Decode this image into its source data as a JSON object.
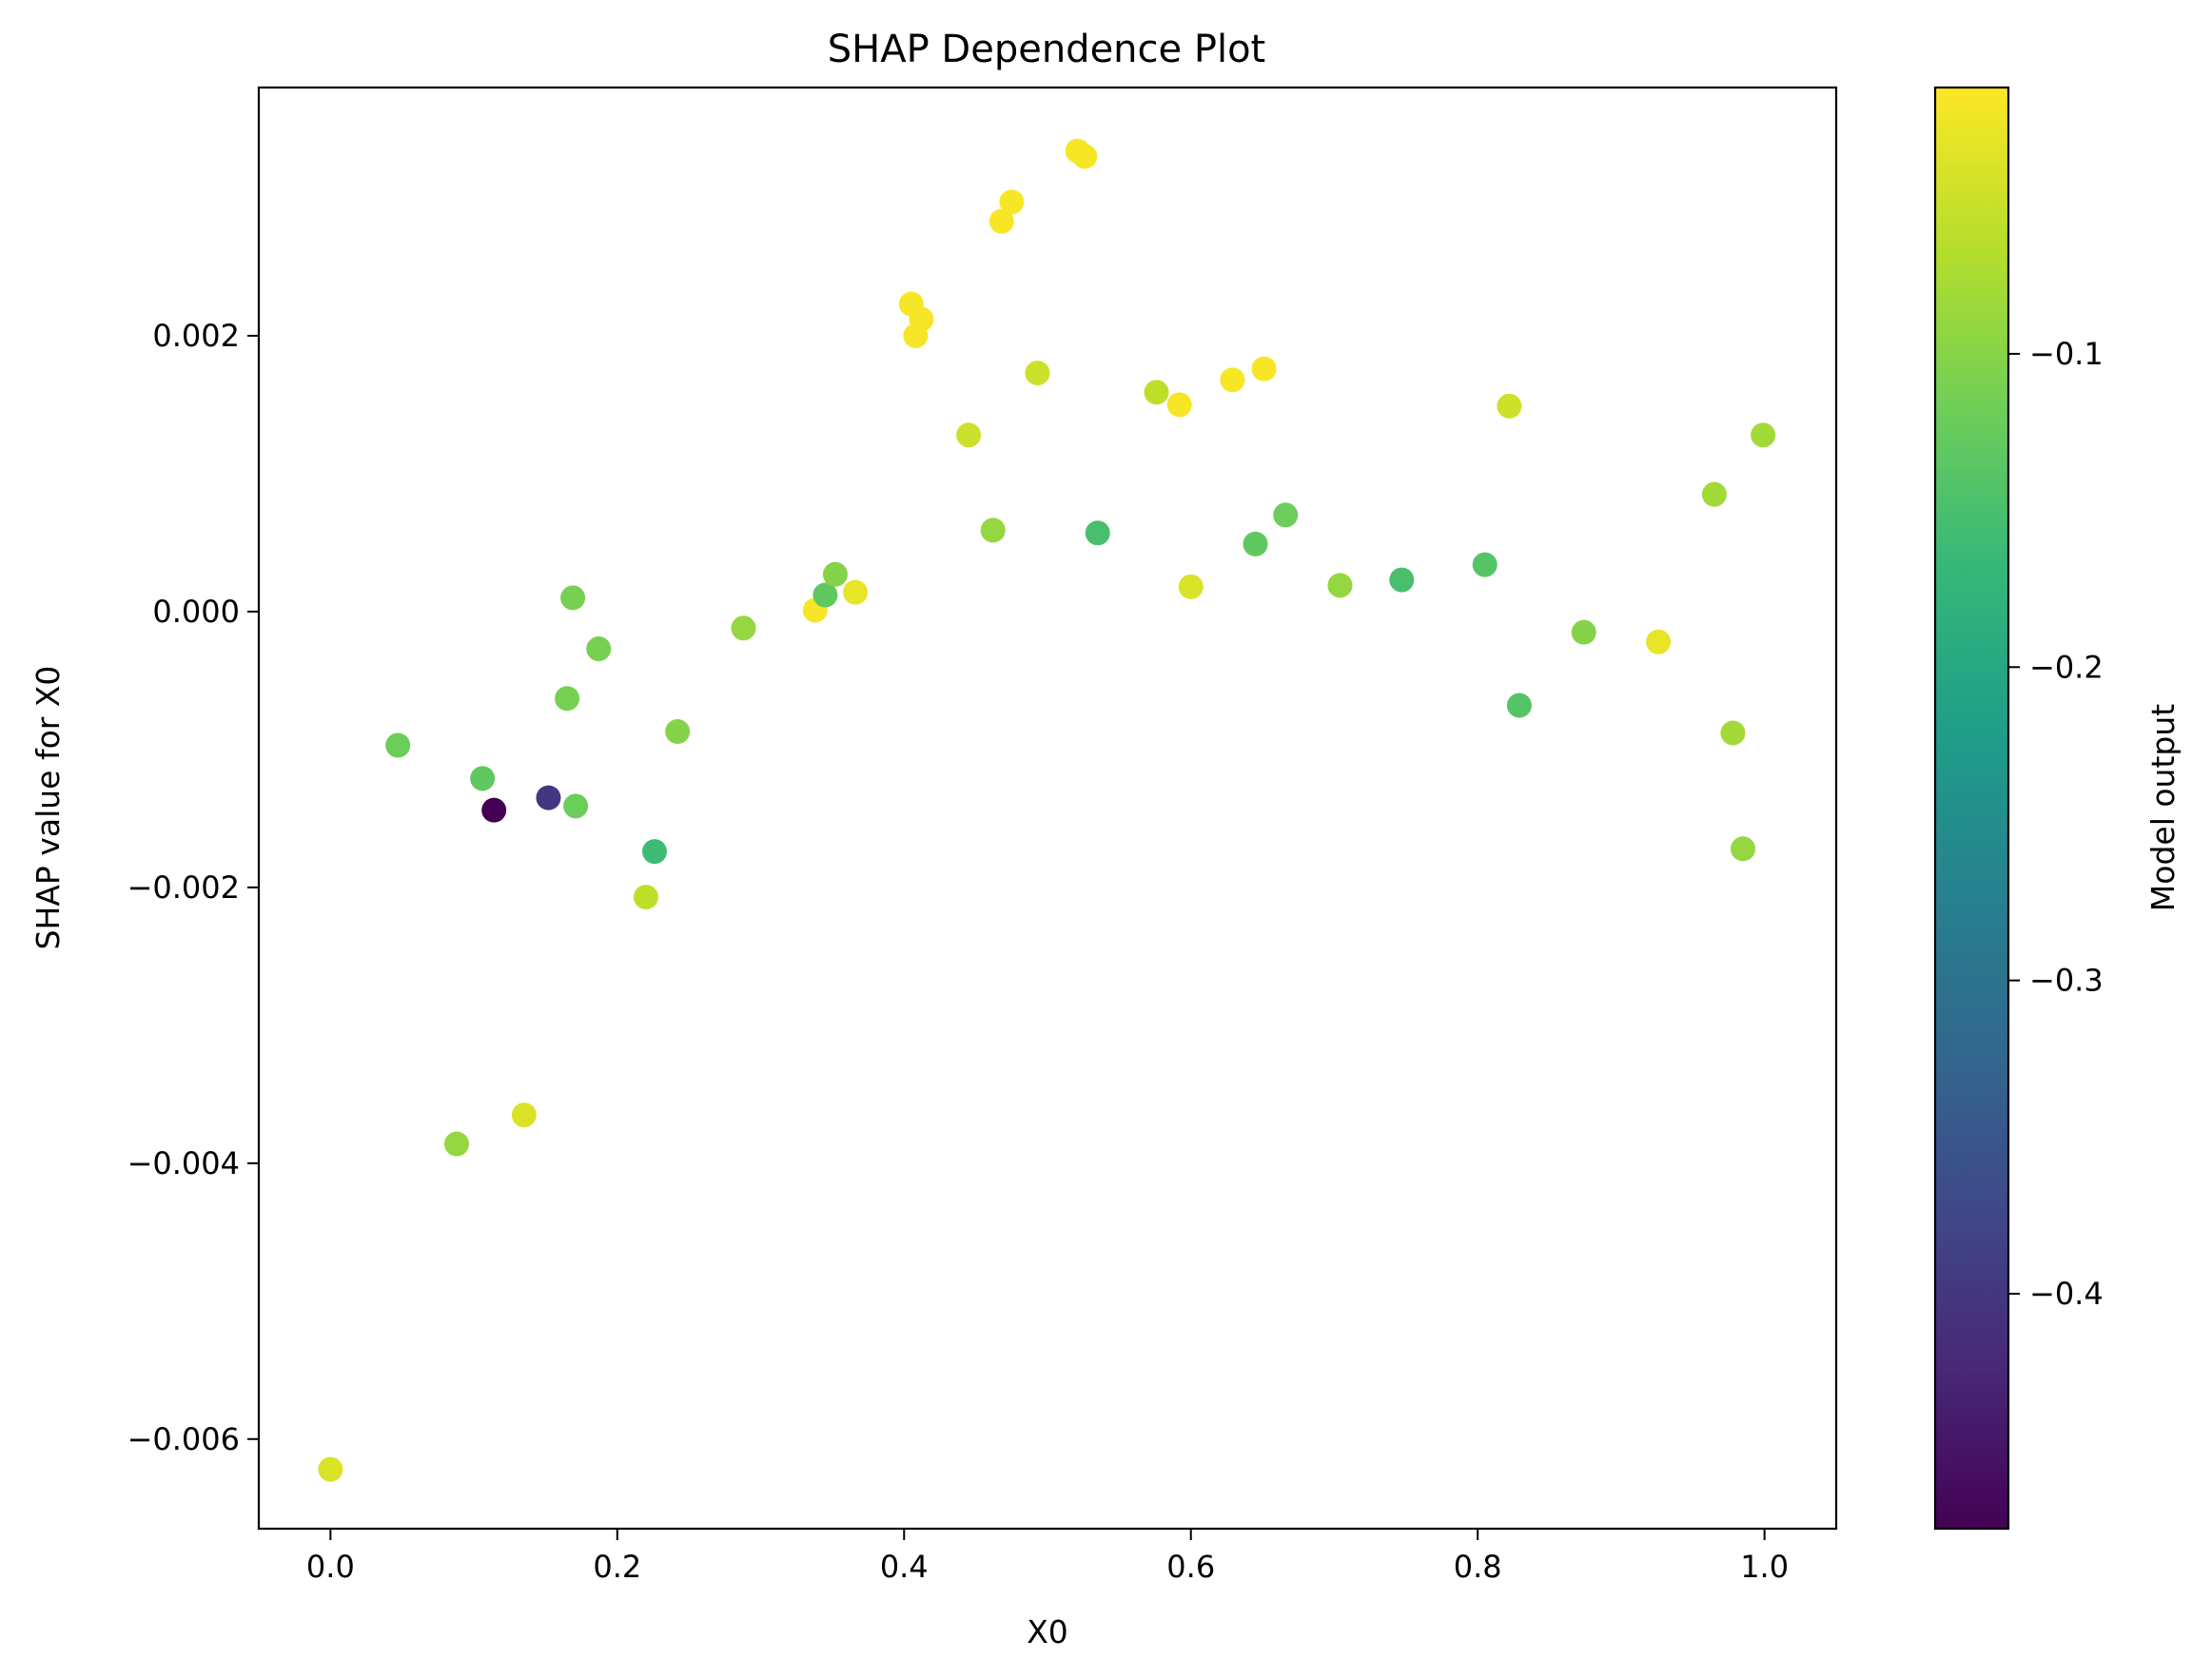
{
  "chart_data": {
    "type": "scatter",
    "title": "SHAP Dependence Plot",
    "xlabel": "X0",
    "ylabel": "SHAP value for X0",
    "xlim": [
      -0.05,
      1.05
    ],
    "ylim": [
      -0.00665,
      0.0038
    ],
    "xticks": [
      0.0,
      0.2,
      0.4,
      0.6,
      0.8,
      1.0
    ],
    "xtick_labels": [
      "0.0",
      "0.2",
      "0.4",
      "0.6",
      "0.8",
      "1.0"
    ],
    "yticks": [
      -0.006,
      -0.004,
      -0.002,
      0.0,
      0.002
    ],
    "ytick_labels": [
      "−0.006",
      "−0.004",
      "−0.002",
      "0.000",
      "0.002"
    ],
    "grid": false,
    "colorbar": {
      "label": "Model output",
      "colormap": "viridis",
      "range": [
        -0.475,
        -0.015
      ],
      "ticks": [
        -0.1,
        -0.2,
        -0.3,
        -0.4
      ],
      "tick_labels": [
        "−0.1",
        "−0.2",
        "−0.3",
        "−0.4"
      ]
    },
    "points": [
      {
        "x": 0.0,
        "y": -0.00622,
        "c": -0.04
      },
      {
        "x": 0.047,
        "y": -0.00097,
        "c": -0.12
      },
      {
        "x": 0.088,
        "y": -0.00386,
        "c": -0.09
      },
      {
        "x": 0.106,
        "y": -0.00121,
        "c": -0.13
      },
      {
        "x": 0.114,
        "y": -0.00144,
        "c": -0.475
      },
      {
        "x": 0.135,
        "y": -0.00365,
        "c": -0.04
      },
      {
        "x": 0.152,
        "y": -0.00135,
        "c": -0.4
      },
      {
        "x": 0.165,
        "y": -0.00063,
        "c": -0.11
      },
      {
        "x": 0.169,
        "y": 0.0001,
        "c": -0.11
      },
      {
        "x": 0.171,
        "y": -0.00141,
        "c": -0.12
      },
      {
        "x": 0.187,
        "y": -0.00027,
        "c": -0.11
      },
      {
        "x": 0.22,
        "y": -0.00207,
        "c": -0.06
      },
      {
        "x": 0.226,
        "y": -0.00174,
        "c": -0.16
      },
      {
        "x": 0.242,
        "y": -0.00087,
        "c": -0.1
      },
      {
        "x": 0.288,
        "y": -0.00012,
        "c": -0.09
      },
      {
        "x": 0.338,
        "y": 1e-05,
        "c": -0.02
      },
      {
        "x": 0.345,
        "y": 0.00012,
        "c": -0.13
      },
      {
        "x": 0.352,
        "y": 0.00027,
        "c": -0.1
      },
      {
        "x": 0.366,
        "y": 0.00014,
        "c": -0.03
      },
      {
        "x": 0.405,
        "y": 0.00223,
        "c": -0.02
      },
      {
        "x": 0.408,
        "y": 0.002,
        "c": -0.02
      },
      {
        "x": 0.412,
        "y": 0.00212,
        "c": -0.02
      },
      {
        "x": 0.445,
        "y": 0.00128,
        "c": -0.05
      },
      {
        "x": 0.462,
        "y": 0.00059,
        "c": -0.09
      },
      {
        "x": 0.468,
        "y": 0.00283,
        "c": -0.02
      },
      {
        "x": 0.475,
        "y": 0.00297,
        "c": -0.02
      },
      {
        "x": 0.493,
        "y": 0.00173,
        "c": -0.05
      },
      {
        "x": 0.521,
        "y": 0.00334,
        "c": -0.02
      },
      {
        "x": 0.526,
        "y": 0.0033,
        "c": -0.02
      },
      {
        "x": 0.535,
        "y": 0.00057,
        "c": -0.15
      },
      {
        "x": 0.576,
        "y": 0.00159,
        "c": -0.06
      },
      {
        "x": 0.592,
        "y": 0.0015,
        "c": -0.02
      },
      {
        "x": 0.6,
        "y": 0.00018,
        "c": -0.04
      },
      {
        "x": 0.629,
        "y": 0.00168,
        "c": -0.02
      },
      {
        "x": 0.645,
        "y": 0.00049,
        "c": -0.13
      },
      {
        "x": 0.651,
        "y": 0.00176,
        "c": -0.02
      },
      {
        "x": 0.666,
        "y": 0.0007,
        "c": -0.12
      },
      {
        "x": 0.704,
        "y": 0.00019,
        "c": -0.09
      },
      {
        "x": 0.747,
        "y": 0.00023,
        "c": -0.15
      },
      {
        "x": 0.805,
        "y": 0.00034,
        "c": -0.14
      },
      {
        "x": 0.822,
        "y": 0.00149,
        "c": -0.05
      },
      {
        "x": 0.829,
        "y": -0.00068,
        "c": -0.14
      },
      {
        "x": 0.874,
        "y": -0.00015,
        "c": -0.1
      },
      {
        "x": 0.926,
        "y": -0.00022,
        "c": -0.03
      },
      {
        "x": 0.965,
        "y": 0.00085,
        "c": -0.08
      },
      {
        "x": 0.978,
        "y": -0.00088,
        "c": -0.08
      },
      {
        "x": 0.985,
        "y": -0.00172,
        "c": -0.09
      },
      {
        "x": 0.999,
        "y": 0.00128,
        "c": -0.08
      }
    ]
  }
}
